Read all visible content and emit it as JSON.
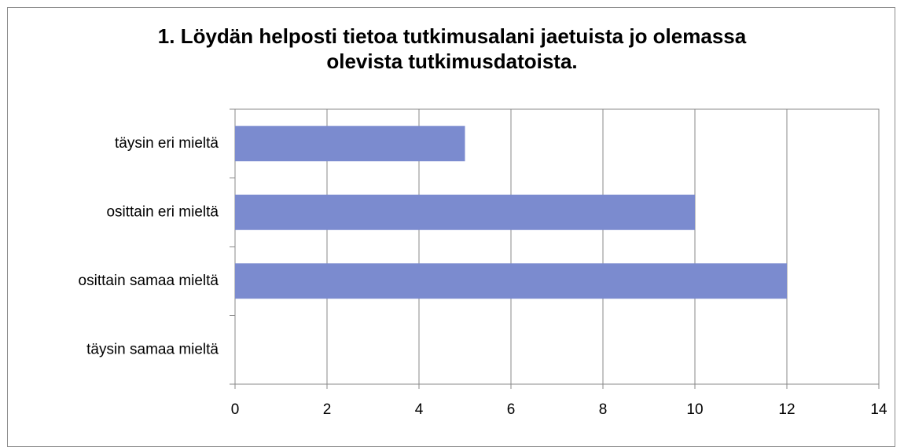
{
  "chart_data": {
    "type": "bar",
    "orientation": "horizontal",
    "title": "1. Löydän helposti tietoa tutkimusalani jaetuista jo olemassa olevista tutkimusdatoista.",
    "categories": [
      "täysin eri mieltä",
      "osittain eri mieltä",
      "osittain samaa mieltä",
      "täysin samaa mieltä"
    ],
    "values": [
      5,
      10,
      12,
      0
    ],
    "color": "#7b8bcf",
    "xlim": [
      0,
      14
    ],
    "xticks": [
      0,
      2,
      4,
      6,
      8,
      10,
      12,
      14
    ],
    "grid": true
  }
}
